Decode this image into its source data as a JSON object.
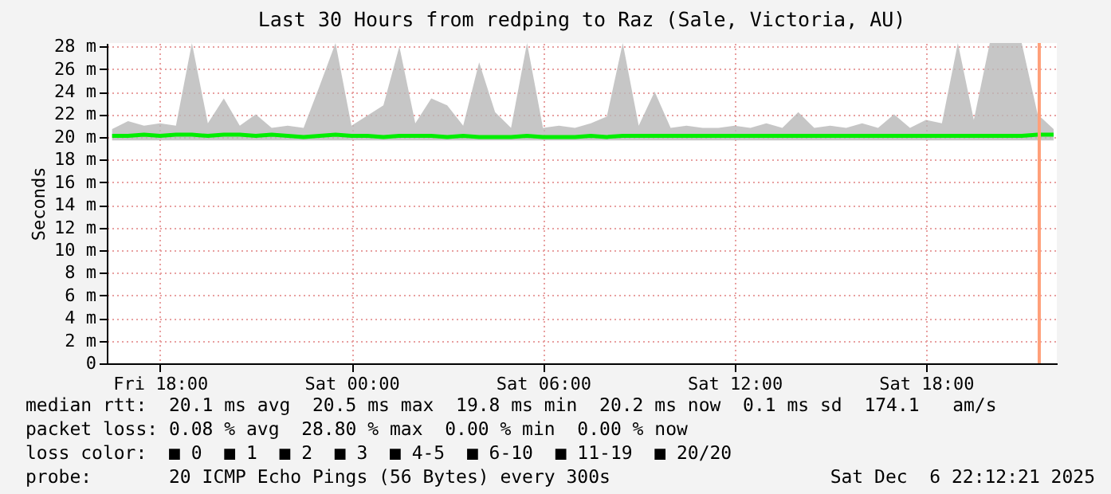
{
  "chart_data": {
    "type": "line",
    "title": "Last 30 Hours from redping to Raz (Sale, Victoria, AU)",
    "ylabel": "Seconds",
    "xlim": [
      "2025-12-05T16:20",
      "2025-12-06T22:06"
    ],
    "xticks": [
      {
        "value": "2025-12-05T18:00",
        "label": "Fri 18:00"
      },
      {
        "value": "2025-12-06T00:00",
        "label": "Sat 00:00"
      },
      {
        "value": "2025-12-06T06:00",
        "label": "Sat 06:00"
      },
      {
        "value": "2025-12-06T12:00",
        "label": "Sat 12:00"
      },
      {
        "value": "2025-12-06T18:00",
        "label": "Sat 18:00"
      }
    ],
    "ylim": [
      0,
      28.3
    ],
    "yticks": [
      0,
      {
        "value": 2,
        "label": "2 m"
      },
      {
        "value": 4,
        "label": "4 m"
      },
      {
        "value": 6,
        "label": "6 m"
      },
      {
        "value": 8,
        "label": "8 m"
      },
      {
        "value": 10,
        "label": "10 m"
      },
      {
        "value": 12,
        "label": "12 m"
      },
      {
        "value": 14,
        "label": "14 m"
      },
      {
        "value": 16,
        "label": "16 m"
      },
      {
        "value": 18,
        "label": "18 m"
      },
      {
        "value": 20,
        "label": "20 m"
      },
      {
        "value": 22,
        "label": "22 m"
      },
      {
        "value": 24,
        "label": "24 m"
      },
      {
        "value": 26,
        "label": "26 m"
      },
      {
        "value": 28,
        "label": "28 m"
      }
    ],
    "grid": true,
    "line_style": "solid",
    "series": [
      {
        "color": "#00ee00",
        "x": [
          "2025-12-05T16:30",
          "2025-12-05T17:00",
          "2025-12-05T17:30",
          "2025-12-05T18:00",
          "2025-12-05T18:30",
          "2025-12-05T19:00",
          "2025-12-05T19:30",
          "2025-12-05T20:00",
          "2025-12-05T20:30",
          "2025-12-05T21:00",
          "2025-12-05T21:30",
          "2025-12-05T22:00",
          "2025-12-05T22:30",
          "2025-12-05T23:00",
          "2025-12-05T23:30",
          "2025-12-06T00:00",
          "2025-12-06T00:30",
          "2025-12-06T01:00",
          "2025-12-06T01:30",
          "2025-12-06T02:00",
          "2025-12-06T02:30",
          "2025-12-06T03:00",
          "2025-12-06T03:30",
          "2025-12-06T04:00",
          "2025-12-06T04:30",
          "2025-12-06T05:00",
          "2025-12-06T05:30",
          "2025-12-06T06:00",
          "2025-12-06T06:30",
          "2025-12-06T07:00",
          "2025-12-06T07:30",
          "2025-12-06T08:00",
          "2025-12-06T08:30",
          "2025-12-06T09:00",
          "2025-12-06T09:30",
          "2025-12-06T10:00",
          "2025-12-06T10:30",
          "2025-12-06T11:00",
          "2025-12-06T11:30",
          "2025-12-06T12:00",
          "2025-12-06T12:30",
          "2025-12-06T13:00",
          "2025-12-06T13:30",
          "2025-12-06T14:00",
          "2025-12-06T14:30",
          "2025-12-06T15:00",
          "2025-12-06T15:30",
          "2025-12-06T16:00",
          "2025-12-06T16:30",
          "2025-12-06T17:00",
          "2025-12-06T17:30",
          "2025-12-06T18:00",
          "2025-12-06T18:30",
          "2025-12-06T19:00",
          "2025-12-06T19:30",
          "2025-12-06T20:00",
          "2025-12-06T20:30",
          "2025-12-06T21:00",
          "2025-12-06T21:30",
          "2025-12-06T22:00"
        ],
        "values": [
          20.1,
          20.1,
          20.2,
          20.1,
          20.2,
          20.2,
          20.1,
          20.2,
          20.2,
          20.1,
          20.2,
          20.1,
          20.0,
          20.1,
          20.2,
          20.1,
          20.1,
          20.0,
          20.1,
          20.1,
          20.1,
          20.0,
          20.1,
          20.0,
          20.0,
          20.0,
          20.1,
          20.0,
          20.0,
          20.0,
          20.1,
          20.0,
          20.1,
          20.1,
          20.1,
          20.1,
          20.1,
          20.1,
          20.1,
          20.1,
          20.1,
          20.1,
          20.1,
          20.1,
          20.1,
          20.1,
          20.1,
          20.1,
          20.1,
          20.1,
          20.1,
          20.1,
          20.1,
          20.1,
          20.1,
          20.1,
          20.1,
          20.1,
          20.2,
          20.2
        ],
        "lower": [
          19.7,
          19.7,
          19.7,
          19.7,
          19.7,
          19.7,
          19.7,
          19.7,
          19.7,
          19.7,
          19.7,
          19.7,
          19.7,
          19.7,
          19.7,
          19.7,
          19.7,
          19.7,
          19.7,
          19.7,
          19.7,
          19.7,
          19.7,
          19.7,
          19.7,
          19.7,
          19.7,
          19.7,
          19.7,
          19.7,
          19.7,
          19.7,
          19.7,
          19.7,
          19.7,
          19.7,
          19.7,
          19.7,
          19.7,
          19.7,
          19.7,
          19.7,
          19.7,
          19.7,
          19.7,
          19.7,
          19.7,
          19.7,
          19.7,
          19.7,
          19.7,
          19.7,
          19.7,
          19.7,
          19.7,
          19.7,
          19.7,
          19.7,
          19.7,
          19.7
        ],
        "upper": [
          20.7,
          21.4,
          21.0,
          21.2,
          21.0,
          28.3,
          21.2,
          23.4,
          21.0,
          22.0,
          20.8,
          21.0,
          20.8,
          24.5,
          28.3,
          21.0,
          21.9,
          22.8,
          28.0,
          21.2,
          23.4,
          22.8,
          21.0,
          26.6,
          22.2,
          20.8,
          28.3,
          20.8,
          21.0,
          20.8,
          21.2,
          21.8,
          28.3,
          21.0,
          24.0,
          20.8,
          21.0,
          20.8,
          20.8,
          21.0,
          20.8,
          21.2,
          20.8,
          22.2,
          20.8,
          21.0,
          20.8,
          21.2,
          20.8,
          22.0,
          20.8,
          21.5,
          21.2,
          28.3,
          21.5,
          28.3,
          28.3,
          28.3,
          22.0,
          20.7
        ]
      }
    ],
    "ref_lines": [
      {
        "axis": "x",
        "value": "2025-12-06T21:33",
        "label": null,
        "color": "#ffa07a"
      }
    ],
    "annotations": [
      "median rtt:  20.1 ms avg  20.5 ms max  19.8 ms min  20.2 ms now  0.1 ms sd  174.1   am/s",
      "packet loss: 0.08 % avg  28.80 % max  0.00 % min  0.00 % now",
      "loss color:  ■ 0  ■ 1  ■ 2  ■ 3  ■ 4-5  ■ 6-10  ■ 11-19  ■ 20/20",
      "probe:       20 ICMP Echo Pings (56 Bytes) every 300s",
      "Sat Dec  6 22:12:21 2025"
    ]
  }
}
